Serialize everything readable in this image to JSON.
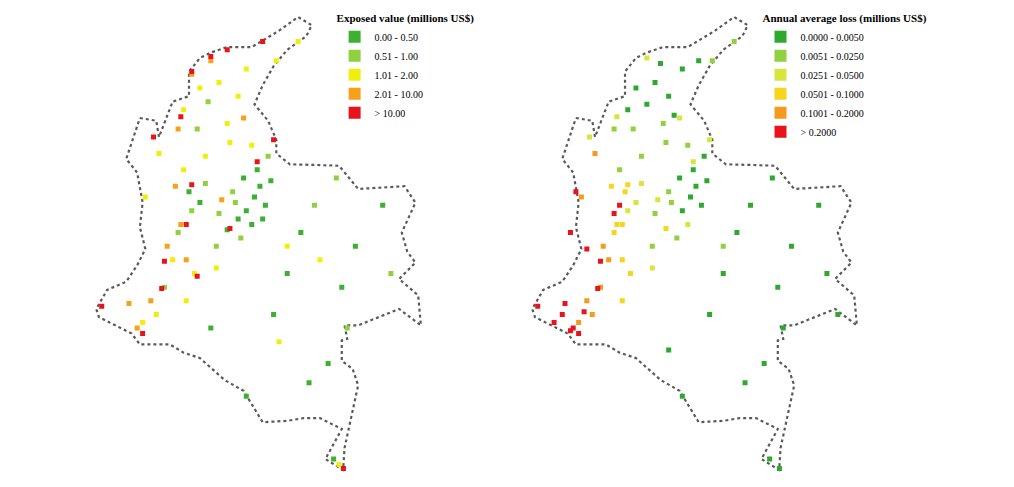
{
  "chart_data": [
    {
      "type": "scatter",
      "title": "Exposed value (millions US$)",
      "marker": "square",
      "legend": "top right",
      "tick_labels": false,
      "outline": {
        "x": [
          -77.4,
          -76.8,
          -76.7,
          -76.2,
          -75.6,
          -75.6,
          -75.2,
          -74.8,
          -74.2,
          -73.3,
          -72.3,
          -71.6,
          -71.1,
          -71.3,
          -72.0,
          -72.5,
          -72.9,
          -73.2,
          -72.7,
          -72.4,
          -72.4,
          -71.9,
          -71.0,
          -70.1,
          -69.4,
          -67.7,
          -67.3,
          -67.8,
          -67.6,
          -67.3,
          -67.9,
          -67.2,
          -67.1,
          -67.9,
          -69.4,
          -69.9,
          -69.8,
          -70.0,
          -70.0,
          -69.6,
          -69.4,
          -69.6,
          -69.9,
          -69.95,
          -70.6,
          -70.0,
          -70.8,
          -71.4,
          -72.0,
          -72.9,
          -73.6,
          -74.3,
          -75.2,
          -75.8,
          -76.3,
          -77.4,
          -77.7,
          -78.9,
          -79.0,
          -78.6,
          -77.9,
          -77.5,
          -77.2,
          -77.4,
          -77.3,
          -77.5,
          -77.9,
          -77.4
        ],
        "y": [
          8.7,
          8.6,
          8.0,
          9.3,
          9.5,
          10.4,
          10.9,
          11.1,
          11.3,
          11.3,
          11.9,
          12.4,
          12.1,
          11.7,
          11.2,
          10.6,
          9.9,
          9.2,
          8.6,
          7.9,
          7.4,
          7.0,
          6.98,
          6.95,
          6.1,
          6.2,
          5.6,
          4.5,
          3.8,
          3.4,
          2.8,
          2.2,
          1.1,
          1.7,
          1.1,
          1.1,
          0.6,
          0.55,
          -0.2,
          -0.5,
          -1.1,
          -2.0,
          -3.4,
          -4.2,
          -3.8,
          -2.7,
          -2.3,
          -2.3,
          -2.4,
          -2.45,
          -1.3,
          -0.9,
          -0.1,
          0.1,
          0.4,
          0.4,
          0.8,
          1.4,
          1.7,
          2.4,
          2.7,
          3.3,
          3.9,
          4.7,
          5.6,
          6.7,
          7.2,
          8.7
        ]
      },
      "series": [
        {
          "name": "0.00 - 0.50",
          "color": "#3cb031",
          "x": [
            -73.2,
            -73.0,
            -72.8,
            -73.5,
            -73.1,
            -72.6,
            -73.8,
            -73.3,
            -72.9,
            -74.2,
            -75.6,
            -75.2,
            -73.6,
            -71.5,
            -70.0,
            -72.5,
            -71.2,
            -70.5,
            -69.5,
            -72.0,
            -73.5,
            -70.3,
            -74.8,
            -68.5
          ],
          "y": [
            5.8,
            6.2,
            5.5,
            5.3,
            6.8,
            6.4,
            5.0,
            4.8,
            5.0,
            4.6,
            6.0,
            5.6,
            6.5,
            4.5,
            2.5,
            1.5,
            -1.0,
            -0.3,
            4.0,
            3.0,
            -1.5,
            -3.8,
            1.0,
            5.5
          ]
        },
        {
          "name": "0.51 - 1.00",
          "color": "#8fd13f",
          "x": [
            -73.9,
            -74.5,
            -75.0,
            -74.0,
            -75.5,
            -72.7,
            -76.0,
            -74.6,
            -73.7,
            -71.0,
            -70.2,
            -68.2,
            -69.8,
            -75.3,
            -74.9,
            -76.5
          ],
          "y": [
            5.6,
            5.2,
            6.3,
            6.0,
            5.3,
            7.3,
            4.5,
            4.0,
            4.3,
            5.5,
            6.5,
            3.0,
            1.0,
            8.3,
            9.3,
            2.5
          ]
        },
        {
          "name": "1.01 - 2.00",
          "color": "#f2ee0c",
          "x": [
            -75.8,
            -74.5,
            -75.2,
            -73.8,
            -74.2,
            -75.8,
            -75.0,
            -76.2,
            -75.4,
            -76.8,
            -77.3,
            -75.7,
            -74.6,
            -73.3,
            -72.4,
            -73.5,
            -71.6,
            -72.0,
            -70.8,
            -74.1,
            -76.7,
            -77.2,
            -72.3,
            -70.1
          ],
          "y": [
            9.0,
            10.0,
            9.8,
            9.5,
            8.5,
            6.8,
            7.3,
            3.5,
            3.0,
            1.5,
            1.2,
            2.0,
            3.2,
            7.7,
            10.8,
            10.5,
            11.5,
            4.0,
            3.5,
            7.8,
            7.4,
            5.8,
            0.5,
            -4.0
          ]
        },
        {
          "name": "2.01 - 10.00",
          "color": "#f7a11a",
          "x": [
            -75.9,
            -76.4,
            -77.0,
            -75.5,
            -74.8,
            -76.0,
            -75.7,
            -74.4,
            -77.5,
            -77.8,
            -73.6,
            -76.1
          ],
          "y": [
            4.8,
            4.0,
            2.0,
            10.3,
            10.8,
            8.3,
            3.5,
            5.7,
            1.0,
            1.9,
            8.7,
            6.2
          ]
        },
        {
          "name": "> 10.00",
          "color": "#e8141a",
          "x": [
            -75.5,
            -74.1,
            -76.5,
            -74.8,
            -75.5,
            -73.1,
            -75.7,
            -72.5,
            -74.2,
            -77.3,
            -76.6,
            -75.9,
            -75.3,
            -76.9,
            -78.8,
            -72.9,
            -69.94
          ],
          "y": [
            6.25,
            4.65,
            3.45,
            10.95,
            10.4,
            7.1,
            4.8,
            7.9,
            11.2,
            0.8,
            2.45,
            8.75,
            2.9,
            8.0,
            1.8,
            11.5,
            -4.15
          ]
        }
      ]
    },
    {
      "type": "scatter",
      "title": "Annual average loss (millions US$)",
      "marker": "square",
      "legend": "top right",
      "tick_labels": false,
      "outline": {
        "x": [
          -77.4,
          -76.8,
          -76.7,
          -76.2,
          -75.6,
          -75.6,
          -75.2,
          -74.8,
          -74.2,
          -73.3,
          -72.3,
          -71.6,
          -71.1,
          -71.3,
          -72.0,
          -72.5,
          -72.9,
          -73.2,
          -72.7,
          -72.4,
          -72.4,
          -71.9,
          -71.0,
          -70.1,
          -69.4,
          -67.7,
          -67.3,
          -67.8,
          -67.6,
          -67.3,
          -67.9,
          -67.2,
          -67.1,
          -67.9,
          -69.4,
          -69.9,
          -69.8,
          -70.0,
          -70.0,
          -69.6,
          -69.4,
          -69.6,
          -69.9,
          -69.95,
          -70.6,
          -70.0,
          -70.8,
          -71.4,
          -72.0,
          -72.9,
          -73.6,
          -74.3,
          -75.2,
          -75.8,
          -76.3,
          -77.4,
          -77.7,
          -78.9,
          -79.0,
          -78.6,
          -77.9,
          -77.5,
          -77.2,
          -77.4,
          -77.3,
          -77.5,
          -77.9,
          -77.4
        ],
        "y": [
          8.7,
          8.6,
          8.0,
          9.3,
          9.5,
          10.4,
          10.9,
          11.1,
          11.3,
          11.3,
          11.9,
          12.4,
          12.1,
          11.7,
          11.2,
          10.6,
          9.9,
          9.2,
          8.6,
          7.9,
          7.4,
          7.0,
          6.98,
          6.95,
          6.1,
          6.2,
          5.6,
          4.5,
          3.8,
          3.4,
          2.8,
          2.2,
          1.1,
          1.7,
          1.1,
          1.1,
          0.6,
          0.55,
          -0.2,
          -0.5,
          -1.1,
          -2.0,
          -3.4,
          -4.2,
          -3.8,
          -2.7,
          -2.3,
          -2.3,
          -2.4,
          -2.45,
          -1.3,
          -0.9,
          -0.1,
          0.1,
          0.4,
          0.4,
          0.8,
          1.4,
          1.7,
          2.4,
          2.7,
          3.3,
          3.9,
          4.7,
          5.6,
          6.7,
          7.2,
          8.7
        ]
      },
      "series": [
        {
          "name": "0.0000 - 0.0050",
          "color": "#2fa82f",
          "x": [
            -75.2,
            -74.5,
            -74.0,
            -73.5,
            -74.8,
            -75.5,
            -73.8,
            -72.9,
            -74.3,
            -73.2,
            -73.0,
            -72.8,
            -73.5,
            -73.1,
            -72.6,
            -73.6,
            -72.7,
            -71.5,
            -70.0,
            -72.5,
            -71.2,
            -70.5,
            -69.5,
            -72.0,
            -73.5,
            -70.3,
            -68.5,
            -67.8,
            -71.0,
            -70.2,
            -68.2,
            -69.8,
            -74.0,
            -69.94
          ],
          "y": [
            9.8,
            10.0,
            9.5,
            10.5,
            9.2,
            9.0,
            8.8,
            10.8,
            10.7,
            5.8,
            6.2,
            5.5,
            5.3,
            6.8,
            6.4,
            6.5,
            7.3,
            4.5,
            2.5,
            1.5,
            -1.0,
            -0.3,
            4.0,
            3.0,
            -1.5,
            -3.8,
            5.5,
            1.5,
            5.5,
            6.5,
            3.0,
            1.0,
            0.2,
            -4.15
          ]
        },
        {
          "name": "0.0051 - 0.0250",
          "color": "#8fd13f",
          "x": [
            -74.0,
            -74.5,
            -73.9,
            -75.3,
            -74.2,
            -75.8,
            -73.3,
            -72.4,
            -71.6,
            -74.6,
            -73.7,
            -72.0,
            -74.1,
            -75.0,
            -76.0
          ],
          "y": [
            6.0,
            5.2,
            5.6,
            8.3,
            8.5,
            6.8,
            7.7,
            10.8,
            11.5,
            4.0,
            4.3,
            4.0,
            7.8,
            7.3,
            8.3
          ]
        },
        {
          "name": "0.0251 - 0.0500",
          "color": "#d6e63a",
          "x": [
            -75.2,
            -75.0,
            -74.4,
            -75.5,
            -73.3,
            -74.6,
            -74.8,
            -73.6,
            -75.9,
            -72.5,
            -73.1,
            -76.9
          ],
          "y": [
            5.6,
            6.3,
            5.7,
            5.3,
            4.8,
            3.2,
            10.9,
            8.7,
            8.75,
            7.9,
            7.1,
            8.0
          ]
        },
        {
          "name": "0.0501 - 0.1000",
          "color": "#f7d51d",
          "x": [
            -75.6,
            -75.9,
            -75.7,
            -75.4,
            -75.7,
            -76.1,
            -75.5,
            -76.0,
            -74.1,
            -75.7
          ],
          "y": [
            6.0,
            4.8,
            4.8,
            3.0,
            3.5,
            6.2,
            6.25,
            4.5,
            4.65,
            2.0
          ]
        },
        {
          "name": "0.1001 - 0.2000",
          "color": "#f59a1c",
          "x": [
            -76.4,
            -76.2,
            -76.5,
            -77.0,
            -76.8,
            -77.3,
            -77.2,
            -76.7
          ],
          "y": [
            4.0,
            3.5,
            2.5,
            2.0,
            1.5,
            1.2,
            5.8,
            7.4
          ]
        },
        {
          "name": "> 0.2000",
          "color": "#e8141a",
          "x": [
            -76.5,
            -76.6,
            -77.3,
            -77.5,
            -77.8,
            -78.8,
            -77.6,
            -77.0,
            -77.6,
            -77.4,
            -76.0,
            -75.8,
            -77.1,
            -78.2,
            -77.9
          ],
          "y": [
            3.45,
            2.45,
            0.8,
            1.0,
            1.9,
            1.8,
            0.9,
            3.9,
            4.5,
            6.0,
            5.2,
            5.5,
            1.6,
            1.2,
            1.5
          ]
        }
      ]
    }
  ]
}
